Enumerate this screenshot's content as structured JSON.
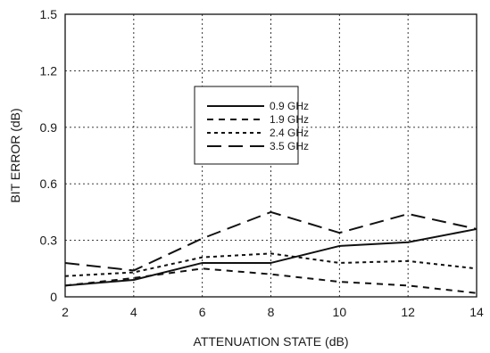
{
  "chart_data": {
    "type": "line",
    "xlabel": "ATTENUATION STATE (dB)",
    "ylabel": "BIT ERROR (dB)",
    "xlim": [
      2,
      14
    ],
    "ylim": [
      0,
      1.5
    ],
    "x_ticks": [
      2,
      4,
      6,
      8,
      10,
      12,
      14
    ],
    "y_ticks": [
      0,
      0.3,
      0.6,
      0.9,
      1.2,
      1.5
    ],
    "y_tick_labels": [
      "0",
      "0.3",
      "0.6",
      "0.9",
      "1.2",
      "1.5"
    ],
    "grid": true,
    "legend_position": "upper-middle",
    "series": [
      {
        "name": "0.9 GHz",
        "dash": "solid",
        "x": [
          2,
          4,
          6,
          8,
          10,
          12,
          14
        ],
        "values": [
          0.06,
          0.09,
          0.18,
          0.18,
          0.27,
          0.29,
          0.36
        ]
      },
      {
        "name": "1.9 GHz",
        "dash": "dashed",
        "x": [
          2,
          4,
          6,
          8,
          10,
          12,
          14
        ],
        "values": [
          0.06,
          0.1,
          0.15,
          0.12,
          0.08,
          0.06,
          0.02
        ]
      },
      {
        "name": "2.4 GHz",
        "dash": "short-dashed",
        "x": [
          2,
          4,
          6,
          8,
          10,
          12,
          14
        ],
        "values": [
          0.11,
          0.13,
          0.21,
          0.23,
          0.18,
          0.19,
          0.15
        ]
      },
      {
        "name": "3.5 GHz",
        "dash": "long-dashed",
        "x": [
          2,
          4,
          6,
          8,
          10,
          12,
          14
        ],
        "values": [
          0.18,
          0.14,
          0.31,
          0.45,
          0.34,
          0.44,
          0.36
        ]
      }
    ]
  }
}
